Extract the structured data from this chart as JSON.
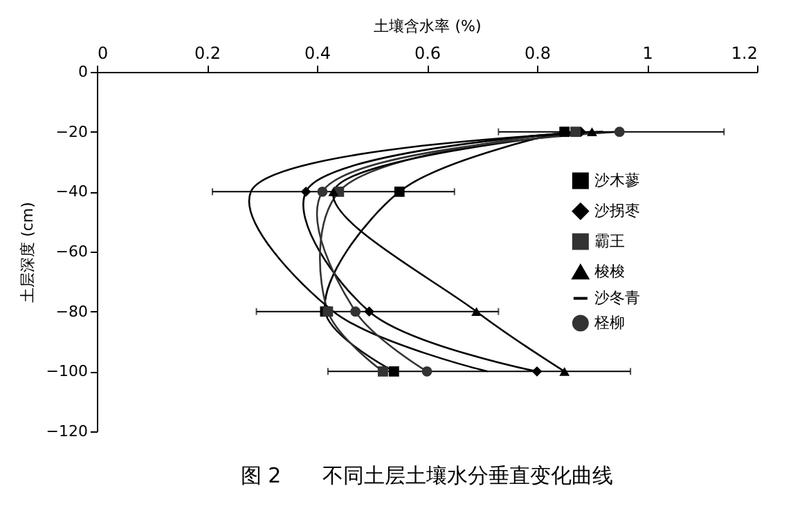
{
  "chart_data": {
    "type": "line",
    "title": "图 2　　不同土层土壤水分垂直变化曲线",
    "xlabel": "土壤含水率 (%)",
    "ylabel": "土层深度 (cm)",
    "xlim": [
      0,
      1.2
    ],
    "xticks": [
      0,
      0.2,
      0.4,
      0.6,
      0.8,
      1,
      1.2
    ],
    "ylim": [
      -120,
      0
    ],
    "yticks": [
      -120,
      -100,
      -80,
      -60,
      -40,
      -20,
      0
    ],
    "legend": "right",
    "series": [
      {
        "name": "沙木蓼",
        "color": "#000000",
        "marker": "square",
        "x": [
          0.85,
          0.55,
          0.415,
          0.54
        ],
        "values": [
          -20,
          -40,
          -80,
          -100
        ]
      },
      {
        "name": "沙拐枣",
        "color": "#000000",
        "marker": "diamond",
        "x": [
          0.88,
          0.38,
          0.495,
          0.8
        ],
        "values": [
          -20,
          -40,
          -80,
          -100
        ]
      },
      {
        "name": "霸王",
        "color": "#333333",
        "marker": "square",
        "x": [
          0.87,
          0.44,
          0.42,
          0.52
        ],
        "values": [
          -20,
          -40,
          -80,
          -100
        ]
      },
      {
        "name": "梭梭",
        "color": "#000000",
        "marker": "triangle",
        "x": [
          0.9,
          0.43,
          0.69,
          0.85
        ],
        "values": [
          -20,
          -40,
          -80,
          -100
        ]
      },
      {
        "name": "沙冬青",
        "color": "#000000",
        "marker": "none",
        "x": [
          0.92,
          0.28,
          0.43,
          0.71
        ],
        "values": [
          -20,
          -40,
          -80,
          -100
        ]
      },
      {
        "name": "柽柳",
        "color": "#333333",
        "marker": "circle",
        "x": [
          0.95,
          0.41,
          0.47,
          0.6
        ],
        "values": [
          -20,
          -40,
          -80,
          -100
        ],
        "xerrors": [
          [
            0.73,
            1.14
          ],
          [
            0.21,
            0.65
          ],
          [
            0.29,
            0.73
          ],
          [
            0.42,
            0.97
          ]
        ]
      }
    ]
  }
}
